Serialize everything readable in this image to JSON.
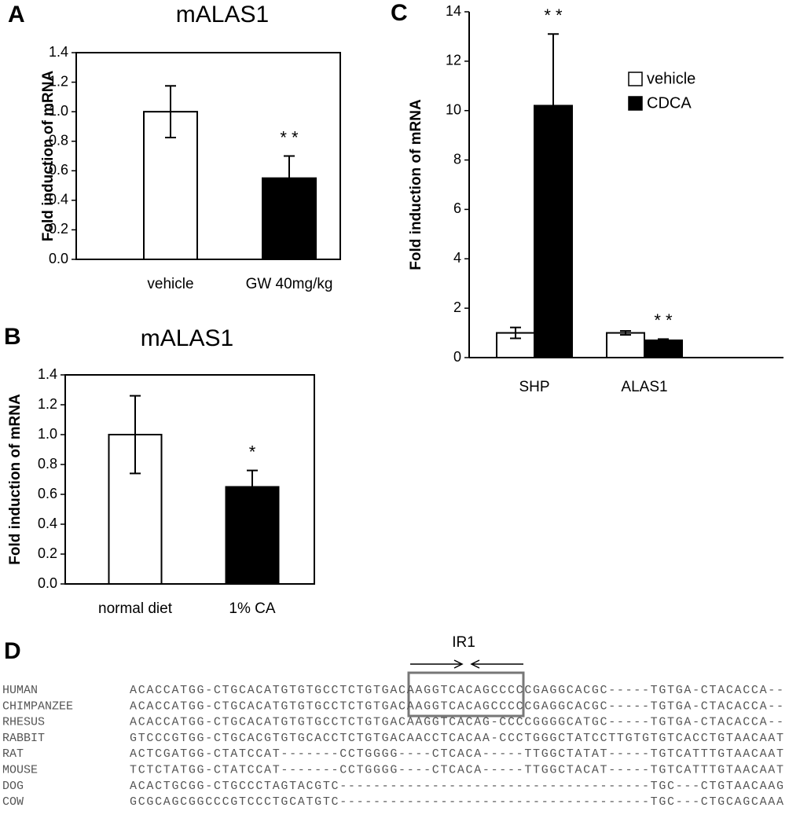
{
  "chart_data": [
    {
      "type": "bar",
      "label": "A",
      "title": "mALAS1",
      "ylabel": "Fold induction of mRNA",
      "categories": [
        "vehicle",
        "GW 40mg/kg"
      ],
      "values": [
        1.0,
        0.55
      ],
      "errors": [
        0.175,
        0.15
      ],
      "colors": [
        "#ffffff",
        "#000000"
      ],
      "significance": [
        null,
        "* *"
      ],
      "ylim": [
        0,
        1.4
      ],
      "yticks": [
        {
          "value": 0,
          "label": "0.0"
        },
        0.2,
        0.4,
        0.6,
        0.8,
        {
          "value": 1,
          "label": "1.0"
        },
        1.2,
        1.4
      ],
      "frame": true
    },
    {
      "type": "bar",
      "label": "B",
      "title": "mALAS1",
      "ylabel": "Fold induction of mRNA",
      "categories": [
        "normal diet",
        "1% CA"
      ],
      "values": [
        1.0,
        0.65
      ],
      "errors": [
        0.26,
        0.11
      ],
      "colors": [
        "#ffffff",
        "#000000"
      ],
      "significance": [
        null,
        "*"
      ],
      "ylim": [
        0,
        1.4
      ],
      "yticks": [
        {
          "value": 0,
          "label": "0.0"
        },
        0.2,
        0.4,
        0.6,
        0.8,
        {
          "value": 1,
          "label": "1.0"
        },
        1.2,
        1.4
      ],
      "frame": true
    },
    {
      "type": "grouped-bar",
      "label": "C",
      "ylabel": "Fold induction of mRNA",
      "categories": [
        "SHP",
        "ALAS1"
      ],
      "series": [
        {
          "name": "vehicle",
          "color": "#ffffff",
          "values": [
            1.0,
            1.0
          ],
          "errors": [
            0.22,
            0.08
          ]
        },
        {
          "name": "CDCA",
          "color": "#000000",
          "values": [
            10.2,
            0.7
          ],
          "errors": [
            2.9,
            0.05
          ],
          "significance": [
            "* *",
            "* *"
          ]
        }
      ],
      "ylim": [
        0,
        14
      ],
      "yticks": [
        0,
        2,
        4,
        6,
        8,
        10,
        12,
        14
      ],
      "frame": false,
      "legend": "upper right"
    }
  ],
  "alignment": {
    "label": "D",
    "motif": "IR1",
    "rows": [
      {
        "name": "HUMAN",
        "sequence": "ACACCATGG-CTGCACATGTGTGCCTCTGTGACAAGGTCACAGCCCCCGAGGCACGC-----TGTGA-CTACACCA--"
      },
      {
        "name": "CHIMPANZEE",
        "sequence": "ACACCATGG-CTGCACATGTGTGCCTCTGTGACAAGGTCACAGCCCCCGAGGCACGC-----TGTGA-CTACACCA--"
      },
      {
        "name": "RHESUS",
        "sequence": "ACACCATGG-CTGCACATGTGTGCCTCTGTGACAAGGTCACAG-CCCCGGGGCATGC-----TGTGA-CTACACCA--"
      },
      {
        "name": "RABBIT",
        "sequence": "GTCCCGTGG-CTGCACGTGTGCACCTCTGTGACAACCTCACAA-CCCTGGGCTATCCTTGTGTGTCACCTGTAACAAT"
      },
      {
        "name": "RAT",
        "sequence": "ACTCGATGG-CTATCCAT-------CCTGGGG----CTCACA-----TTGGCTATAT-----TGTCATTTGTAACAAT"
      },
      {
        "name": "MOUSE",
        "sequence": "TCTCTATGG-CTATCCAT-------CCTGGGG----CTCACA-----TTGGCTACAT-----TGTCATTTGTAACAAT"
      },
      {
        "name": "DOG",
        "sequence": "ACACTGCGG-CTGCCCTAGTACGTC-------------------------------------TGC---CTGTAACAAG"
      },
      {
        "name": "COW",
        "sequence": "GCGCAGCGGCCCGTCCCTGCATGTC-------------------------------------TGC---CTGCAGCAAA"
      }
    ]
  }
}
